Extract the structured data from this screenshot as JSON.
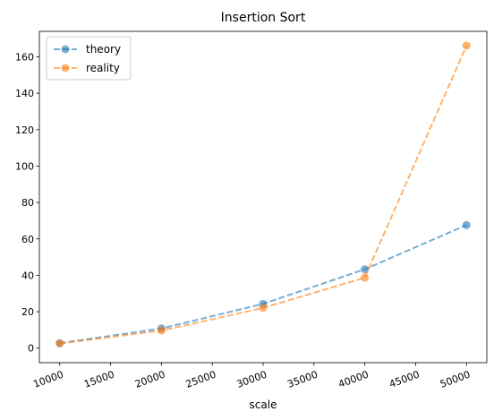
{
  "chart_data": {
    "type": "line",
    "title": "Insertion Sort",
    "xlabel": "scale",
    "ylabel": "",
    "x": [
      10000,
      20000,
      30000,
      40000,
      50000
    ],
    "xlim": [
      8000,
      52000
    ],
    "ylim": [
      -8,
      174
    ],
    "xticks": [
      10000,
      15000,
      20000,
      25000,
      30000,
      35000,
      40000,
      45000,
      50000
    ],
    "yticks": [
      0,
      20,
      40,
      60,
      80,
      100,
      120,
      140,
      160
    ],
    "grid": false,
    "legend_position": "top-left",
    "series": [
      {
        "name": "theory",
        "color": "#1f77b4",
        "values": [
          2.7,
          10.8,
          24.3,
          43.3,
          67.6
        ]
      },
      {
        "name": "reality",
        "color": "#ff7f0e",
        "values": [
          2.6,
          9.6,
          22.1,
          38.7,
          166.2
        ]
      }
    ]
  }
}
